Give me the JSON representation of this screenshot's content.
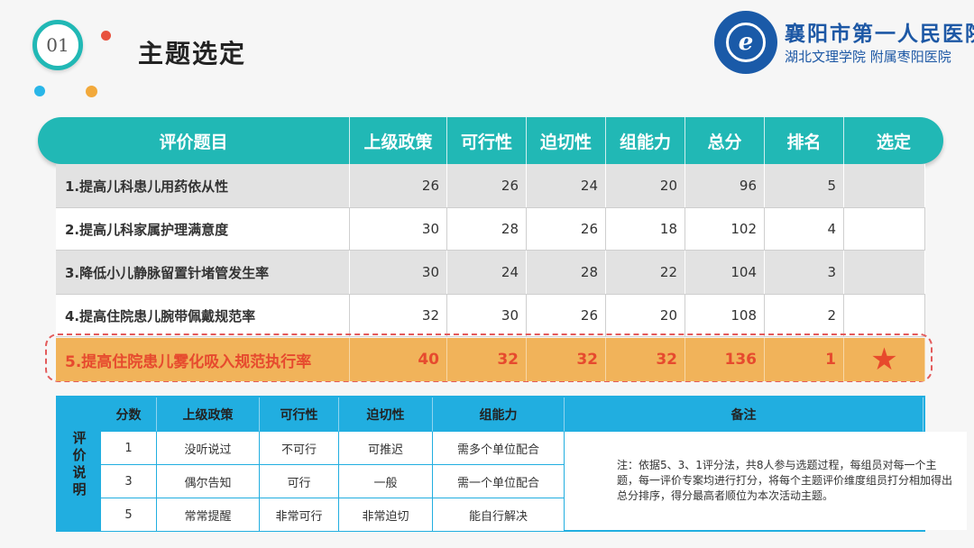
{
  "header": {
    "section_number": "01",
    "title": "主题选定"
  },
  "logo": {
    "mark_letter": "e",
    "line1": "襄阳市第一人民医院",
    "line2": "湖北文理学院 附属枣阳医院"
  },
  "main_table": {
    "columns": [
      "评价题目",
      "上级政策",
      "可行性",
      "迫切性",
      "组能力",
      "总分",
      "排名",
      "选定"
    ],
    "rows": [
      {
        "topic": "1.提高儿科患儿用药依从性",
        "policy": "26",
        "feasibility": "26",
        "urgency": "24",
        "ability": "20",
        "total": "96",
        "rank": "5",
        "selected": ""
      },
      {
        "topic": "2.提高儿科家属护理满意度",
        "policy": "30",
        "feasibility": "28",
        "urgency": "26",
        "ability": "18",
        "total": "102",
        "rank": "4",
        "selected": ""
      },
      {
        "topic": "3.降低小儿静脉留置针堵管发生率",
        "policy": "30",
        "feasibility": "24",
        "urgency": "28",
        "ability": "22",
        "total": "104",
        "rank": "3",
        "selected": ""
      },
      {
        "topic": "4.提高住院患儿腕带佩戴规范率",
        "policy": "32",
        "feasibility": "30",
        "urgency": "26",
        "ability": "20",
        "total": "108",
        "rank": "2",
        "selected": ""
      },
      {
        "topic": "5.提高住院患儿雾化吸入规范执行率",
        "policy": "40",
        "feasibility": "32",
        "urgency": "32",
        "ability": "32",
        "total": "136",
        "rank": "1",
        "selected": "★"
      }
    ],
    "highlight_color": "#f1b35a",
    "header_color": "#21b8b5"
  },
  "legend": {
    "side_label": [
      "评",
      "价",
      "说",
      "明"
    ],
    "columns": [
      "分数",
      "上级政策",
      "可行性",
      "迫切性",
      "组能力",
      "备注"
    ],
    "rows": [
      {
        "score": "1",
        "policy": "没听说过",
        "feasibility": "不可行",
        "urgency": "可推迟",
        "ability": "需多个单位配合"
      },
      {
        "score": "3",
        "policy": "偶尔告知",
        "feasibility": "可行",
        "urgency": "一般",
        "ability": "需一个单位配合"
      },
      {
        "score": "5",
        "policy": "常常提醒",
        "feasibility": "非常可行",
        "urgency": "非常迫切",
        "ability": "能自行解决"
      }
    ],
    "note": "注：依据5、3、1评分法，共8人参与选题过程，每组员对每一个主题，每一评价专案均进行打分，将每个主题评价维度组员打分相加得出总分排序，得分最高者顺位为本次活动主题。",
    "border_color": "#21aee0"
  }
}
